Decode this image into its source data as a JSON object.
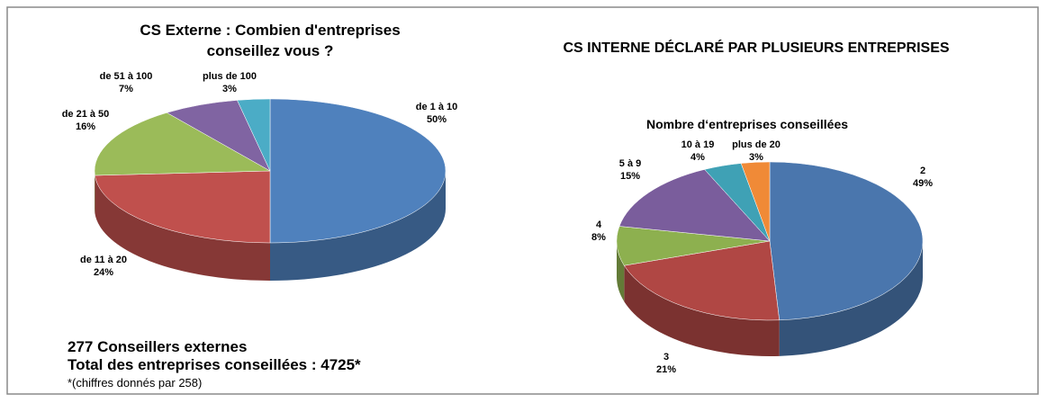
{
  "chart_data": [
    {
      "type": "pie",
      "title": "CS Externe : Combien d'entreprises conseillez vous ?",
      "categories": [
        "de 1 à 10",
        "de 11 à 20",
        "de 21 à 50",
        "de 51 à 100",
        "plus de 100"
      ],
      "values": [
        50,
        24,
        16,
        7,
        3
      ],
      "value_labels": [
        "50%",
        "24%",
        "16%",
        "7%",
        "3%"
      ],
      "colors": [
        "#4f81bd",
        "#c0504d",
        "#9bbb59",
        "#8064a2",
        "#4bacc6"
      ],
      "annotations": [
        "277 Conseillers externes",
        "Total des entreprises conseillées : 4725*",
        "*(chiffres donnés par 258)"
      ]
    },
    {
      "type": "pie",
      "title": "CS INTERNE DÉCLARÉ PAR PLUSIEURS ENTREPRISES",
      "subtitle": "Nombre d‘entreprises conseillées",
      "categories": [
        "2",
        "3",
        "4",
        "5 à 9",
        "10 à 19",
        "plus de 20"
      ],
      "values": [
        49,
        21,
        8,
        15,
        4,
        3
      ],
      "value_labels": [
        "49%",
        "21%",
        "8%",
        "15%",
        "4%",
        "3%"
      ],
      "colors": [
        "#4a76ad",
        "#b04744",
        "#8db04f",
        "#7a5d9c",
        "#3fa1b5",
        "#f08a37"
      ]
    }
  ]
}
